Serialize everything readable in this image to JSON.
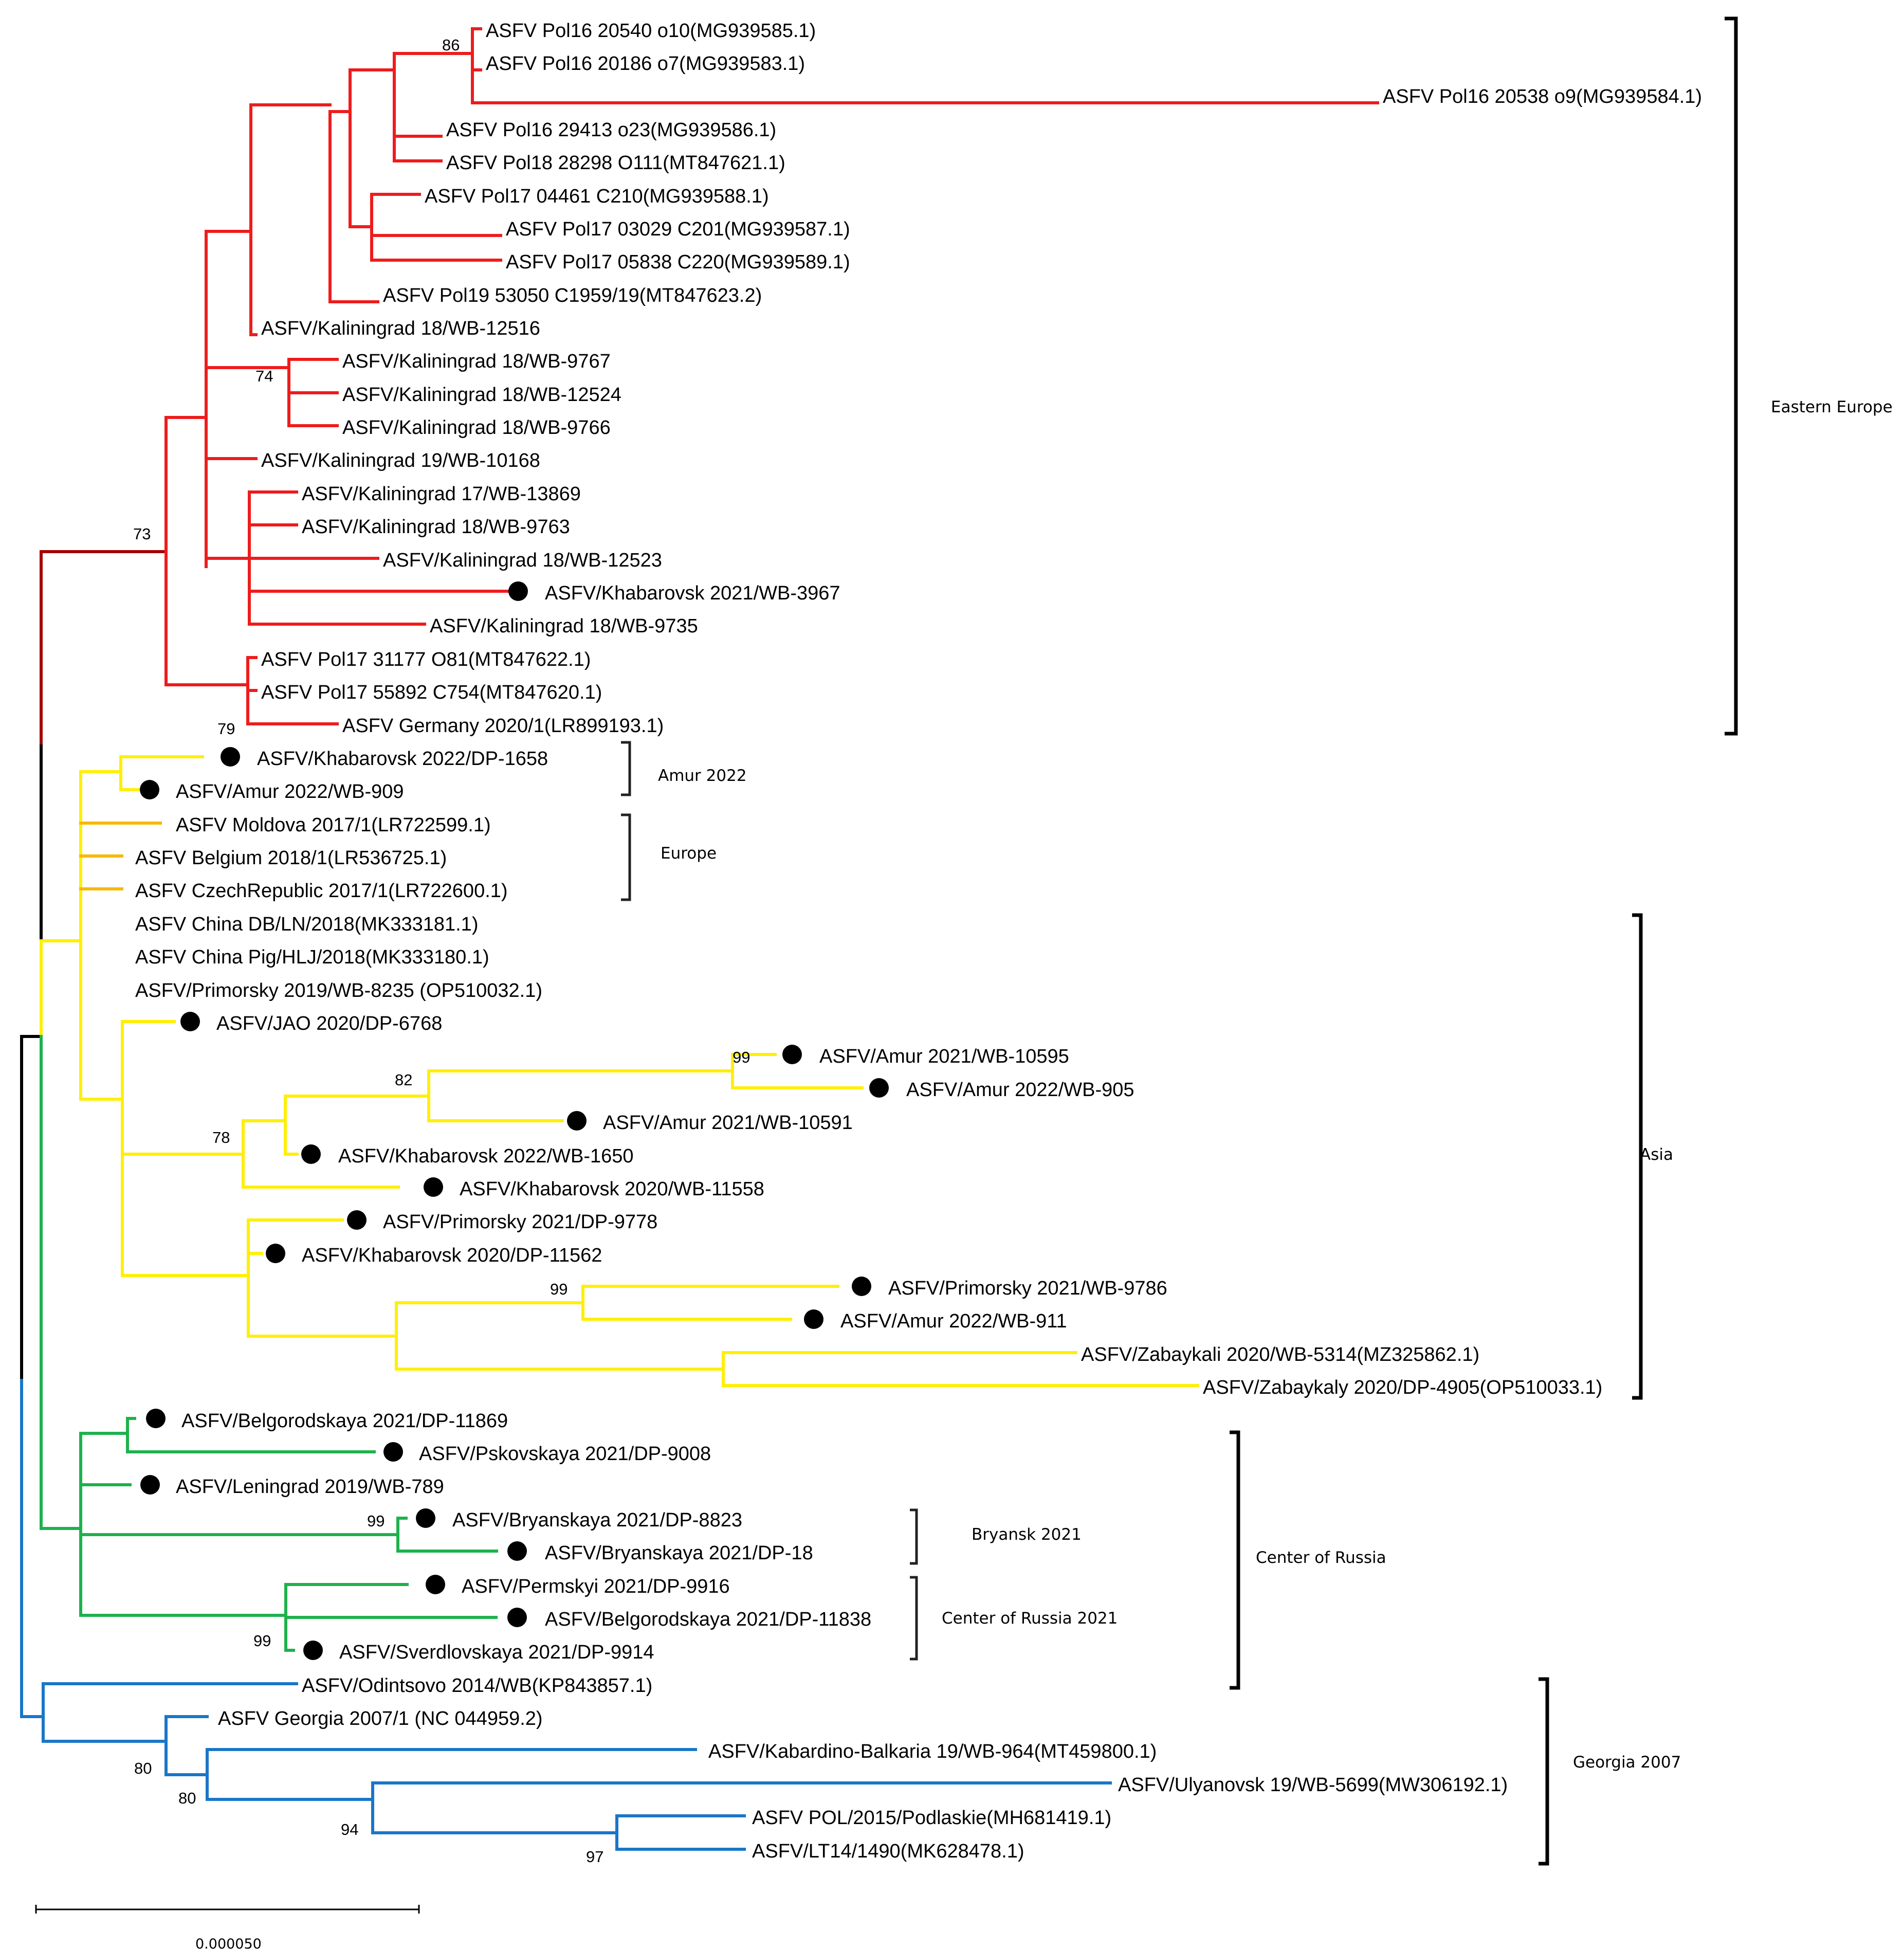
{
  "colors": {
    "red": "#ee1c1c",
    "darkred": "#a40000",
    "yellow": "#ffef00",
    "orange": "#f5b800",
    "green": "#1db24c",
    "blue": "#1a76c8",
    "black": "#000000"
  },
  "leaves": [
    {
      "label": "ASFV Pol16 20540 o10(MG939585.1)",
      "dot": false
    },
    {
      "label": "ASFV Pol16 20186 o7(MG939583.1)",
      "dot": false
    },
    {
      "label": "ASFV Pol16 20538 o9(MG939584.1)",
      "dot": false
    },
    {
      "label": "ASFV Pol16 29413 o23(MG939586.1)",
      "dot": false
    },
    {
      "label": "ASFV Pol18 28298 O111(MT847621.1)",
      "dot": false
    },
    {
      "label": "ASFV Pol17 04461 C210(MG939588.1)",
      "dot": false
    },
    {
      "label": "ASFV Pol17 03029 C201(MG939587.1)",
      "dot": false
    },
    {
      "label": "ASFV Pol17 05838 C220(MG939589.1)",
      "dot": false
    },
    {
      "label": "ASFV Pol19 53050 C1959/19(MT847623.2)",
      "dot": false
    },
    {
      "label": "ASFV/Kaliningrad 18/WB-12516",
      "dot": false
    },
    {
      "label": "ASFV/Kaliningrad 18/WB-9767",
      "dot": false
    },
    {
      "label": "ASFV/Kaliningrad 18/WB-12524",
      "dot": false
    },
    {
      "label": "ASFV/Kaliningrad 18/WB-9766",
      "dot": false
    },
    {
      "label": "ASFV/Kaliningrad 19/WB-10168",
      "dot": false
    },
    {
      "label": "ASFV/Kaliningrad 17/WB-13869",
      "dot": false
    },
    {
      "label": "ASFV/Kaliningrad 18/WB-9763",
      "dot": false
    },
    {
      "label": "ASFV/Kaliningrad 18/WB-12523",
      "dot": false
    },
    {
      "label": "ASFV/Khabarovsk 2021/WB-3967",
      "dot": true
    },
    {
      "label": "ASFV/Kaliningrad 18/WB-9735",
      "dot": false
    },
    {
      "label": "ASFV Pol17 31177 O81(MT847622.1)",
      "dot": false
    },
    {
      "label": "ASFV Pol17 55892 C754(MT847620.1)",
      "dot": false
    },
    {
      "label": "ASFV Germany 2020/1(LR899193.1)",
      "dot": false
    },
    {
      "label": "ASFV/Khabarovsk 2022/DP-1658",
      "dot": true
    },
    {
      "label": "ASFV/Amur 2022/WB-909",
      "dot": true
    },
    {
      "label": "ASFV Moldova 2017/1(LR722599.1)",
      "dot": false
    },
    {
      "label": "ASFV Belgium 2018/1(LR536725.1)",
      "dot": false
    },
    {
      "label": "ASFV CzechRepublic 2017/1(LR722600.1)",
      "dot": false
    },
    {
      "label": "ASFV China DB/LN/2018(MK333181.1)",
      "dot": false
    },
    {
      "label": "ASFV China Pig/HLJ/2018(MK333180.1)",
      "dot": false
    },
    {
      "label": "ASFV/Primorsky 2019/WB-8235 (OP510032.1)",
      "dot": false
    },
    {
      "label": "ASFV/JAO 2020/DP-6768",
      "dot": true
    },
    {
      "label": "ASFV/Amur 2021/WB-10595",
      "dot": true
    },
    {
      "label": "ASFV/Amur 2022/WB-905",
      "dot": true
    },
    {
      "label": "ASFV/Amur 2021/WB-10591",
      "dot": true
    },
    {
      "label": "ASFV/Khabarovsk 2022/WB-1650",
      "dot": true
    },
    {
      "label": "ASFV/Khabarovsk 2020/WB-11558",
      "dot": true
    },
    {
      "label": "ASFV/Primorsky 2021/DP-9778",
      "dot": true
    },
    {
      "label": "ASFV/Khabarovsk 2020/DP-11562",
      "dot": true
    },
    {
      "label": "ASFV/Primorsky 2021/WB-9786",
      "dot": true
    },
    {
      "label": "ASFV/Amur 2022/WB-911",
      "dot": true
    },
    {
      "label": "ASFV/Zabaykali 2020/WB-5314(MZ325862.1)",
      "dot": false
    },
    {
      "label": "ASFV/Zabaykaly 2020/DP-4905(OP510033.1)",
      "dot": false
    },
    {
      "label": "ASFV/Belgorodskaya 2021/DP-11869",
      "dot": true
    },
    {
      "label": "ASFV/Pskovskaya 2021/DP-9008",
      "dot": true
    },
    {
      "label": "ASFV/Leningrad 2019/WB-789",
      "dot": true
    },
    {
      "label": "ASFV/Bryanskaya 2021/DP-8823",
      "dot": true
    },
    {
      "label": "ASFV/Bryanskaya 2021/DP-18",
      "dot": true
    },
    {
      "label": "ASFV/Permskyi 2021/DP-9916",
      "dot": true
    },
    {
      "label": "ASFV/Belgorodskaya 2021/DP-11838",
      "dot": true
    },
    {
      "label": "ASFV/Sverdlovskaya 2021/DP-9914",
      "dot": true
    },
    {
      "label": "ASFV/Odintsovo 2014/WB(KP843857.1)",
      "dot": false
    },
    {
      "label": "ASFV Georgia 2007/1 (NC 044959.2)",
      "dot": false
    },
    {
      "label": "ASFV/Kabardino-Balkaria 19/WB-964(MT459800.1)",
      "dot": false
    },
    {
      "label": "ASFV/Ulyanovsk 19/WB-5699(MW306192.1)",
      "dot": false
    },
    {
      "label": "ASFV POL/2015/Podlaskie(MH681419.1)",
      "dot": false
    },
    {
      "label": "ASFV/LT14/1490(MK628478.1)",
      "dot": false
    }
  ],
  "bootstrap": [
    "86",
    "74",
    "73",
    "79",
    "99",
    "82",
    "78",
    "99",
    "99",
    "99",
    "80",
    "80",
    "94",
    "97"
  ],
  "clades": {
    "eastern_europe": "Eastern Europe",
    "amur_2022": "Amur 2022",
    "europe": "Europe",
    "asia": "Asia",
    "center_of_russia": "Center of Russia",
    "bryansk_2021": "Bryansk 2021",
    "center_of_russia_2021": "Center of Russia 2021",
    "georgia_2007": "Georgia 2007"
  },
  "scale_bar": {
    "label": "0.000050"
  }
}
